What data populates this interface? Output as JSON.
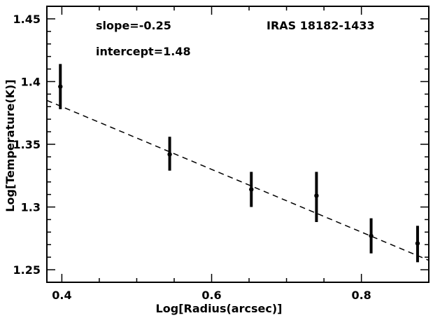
{
  "chart_data": {
    "type": "scatter",
    "title": "",
    "xlabel": "Log[Radius(arcsec)]",
    "ylabel": "Log[Temperature(K)]",
    "xlim": [
      0.38,
      0.89
    ],
    "ylim": [
      1.24,
      1.46
    ],
    "xticks": [
      0.4,
      0.6,
      0.8
    ],
    "xtick_labels": [
      "0.4",
      "0.6",
      "0.8"
    ],
    "yticks": [
      1.25,
      1.3,
      1.35,
      1.4,
      1.45
    ],
    "ytick_labels": [
      "1.25",
      "1.3",
      "1.35",
      "1.4",
      "1.45"
    ],
    "grid": false,
    "points": [
      {
        "x": 0.398,
        "y": 1.396,
        "ylow": 1.378,
        "yhigh": 1.414
      },
      {
        "x": 0.544,
        "y": 1.342,
        "ylow": 1.329,
        "yhigh": 1.356
      },
      {
        "x": 0.653,
        "y": 1.314,
        "ylow": 1.3,
        "yhigh": 1.328
      },
      {
        "x": 0.74,
        "y": 1.309,
        "ylow": 1.288,
        "yhigh": 1.328
      },
      {
        "x": 0.813,
        "y": 1.277,
        "ylow": 1.263,
        "yhigh": 1.291
      },
      {
        "x": 0.875,
        "y": 1.271,
        "ylow": 1.256,
        "yhigh": 1.285
      }
    ],
    "fit": {
      "slope": -0.25,
      "intercept": 1.48,
      "style": "dashed"
    },
    "annotations": {
      "slope": "slope=-0.25",
      "intercept": "intercept=1.48",
      "source": "IRAS 18182-1433"
    }
  }
}
